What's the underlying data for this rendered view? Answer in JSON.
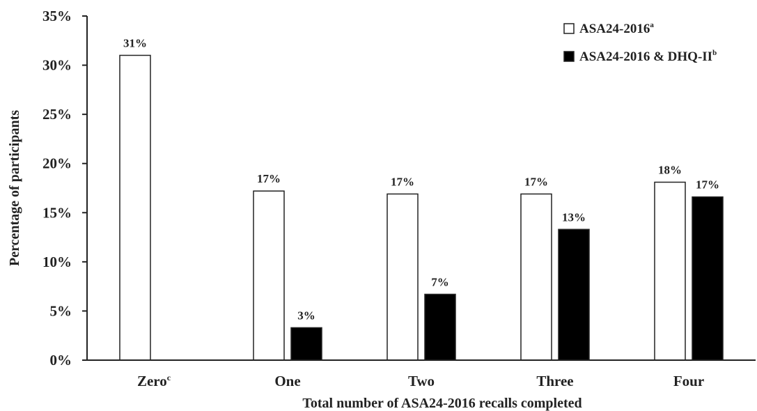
{
  "chart_data": {
    "type": "bar",
    "title": "",
    "xlabel": "Total number of ASA24-2016 recalls completed",
    "ylabel": "Percentage of participants",
    "ylim": [
      0,
      35
    ],
    "yticks": [
      "0%",
      "5%",
      "10%",
      "15%",
      "20%",
      "25%",
      "30%",
      "35%"
    ],
    "ytick_values": [
      0,
      5,
      10,
      15,
      20,
      25,
      30,
      35
    ],
    "categories": [
      {
        "label": "Zero",
        "sup": "c"
      },
      {
        "label": "One",
        "sup": ""
      },
      {
        "label": "Two",
        "sup": ""
      },
      {
        "label": "Three",
        "sup": ""
      },
      {
        "label": "Four",
        "sup": ""
      }
    ],
    "series": [
      {
        "name": "ASA24-2016",
        "name_sup": "a",
        "color": "#ffffff",
        "values": [
          31,
          17.2,
          16.9,
          16.9,
          18.1
        ],
        "labels": [
          "31%",
          "17%",
          "17%",
          "17%",
          "18%"
        ]
      },
      {
        "name": "ASA24-2016 & DHQ-II",
        "name_sup": "b",
        "color": "#000000",
        "values": [
          null,
          3.3,
          6.7,
          13.3,
          16.6
        ],
        "labels": [
          "",
          "3%",
          "7%",
          "13%",
          "17%"
        ]
      }
    ],
    "legend_position": "top-right",
    "grid": false
  }
}
